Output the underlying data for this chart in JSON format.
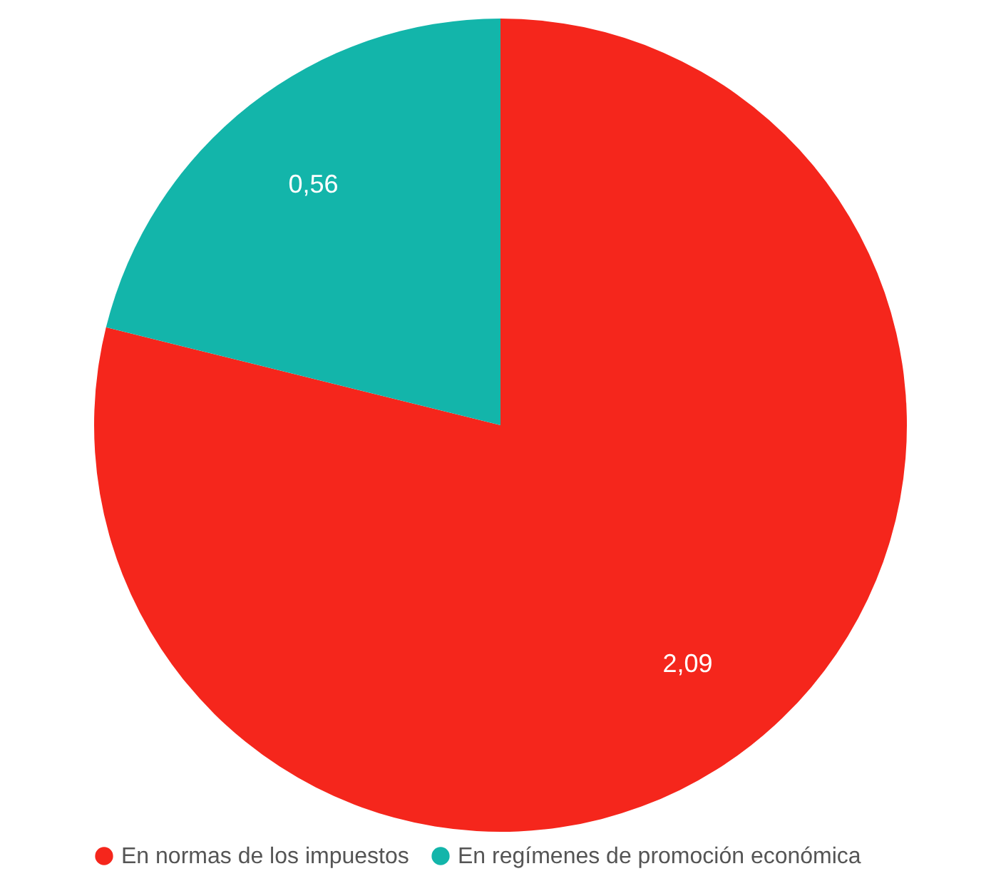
{
  "chart_data": {
    "type": "pie",
    "categories": [
      "En normas de los impuestos",
      "En regímenes de promoción económica"
    ],
    "values": [
      2.09,
      0.56
    ],
    "colors": [
      "#f5261c",
      "#13b5aa"
    ],
    "value_labels": [
      "2,09",
      "0,56"
    ],
    "legend": "bottom"
  }
}
